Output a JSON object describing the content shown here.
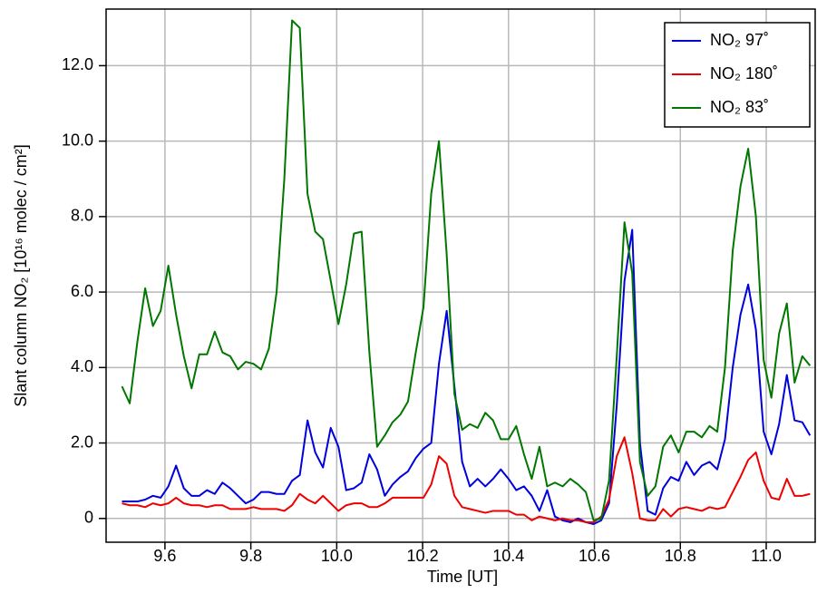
{
  "chart_data": {
    "type": "line",
    "xlabel": "Time [UT]",
    "ylabel": "Slant column NO₂ [10¹⁶ molec / cm²]",
    "x": [
      9.5,
      9.518,
      9.536,
      9.554,
      9.572,
      9.59,
      9.608,
      9.626,
      9.644,
      9.662,
      9.68,
      9.698,
      9.716,
      9.734,
      9.752,
      9.77,
      9.788,
      9.806,
      9.824,
      9.842,
      9.86,
      9.878,
      9.896,
      9.914,
      9.932,
      9.95,
      9.968,
      9.986,
      10.004,
      10.022,
      10.04,
      10.058,
      10.076,
      10.094,
      10.112,
      10.13,
      10.148,
      10.166,
      10.184,
      10.202,
      10.22,
      10.238,
      10.256,
      10.274,
      10.292,
      10.31,
      10.328,
      10.346,
      10.364,
      10.382,
      10.4,
      10.418,
      10.436,
      10.454,
      10.472,
      10.49,
      10.508,
      10.526,
      10.544,
      10.562,
      10.58,
      10.598,
      10.616,
      10.634,
      10.652,
      10.67,
      10.688,
      10.706,
      10.724,
      10.742,
      10.76,
      10.778,
      10.796,
      10.814,
      10.832,
      10.85,
      10.868,
      10.886,
      10.904,
      10.922,
      10.94,
      10.958,
      10.976,
      10.994,
      11.012,
      11.03,
      11.048,
      11.066,
      11.084,
      11.102
    ],
    "series": [
      {
        "name": "NO₂ 97˚",
        "color": "#0000dd",
        "values": [
          0.45,
          0.45,
          0.45,
          0.5,
          0.6,
          0.55,
          0.85,
          1.4,
          0.8,
          0.6,
          0.6,
          0.75,
          0.65,
          0.95,
          0.8,
          0.6,
          0.4,
          0.5,
          0.7,
          0.7,
          0.65,
          0.65,
          1.0,
          1.15,
          2.6,
          1.75,
          1.35,
          2.4,
          1.9,
          0.75,
          0.8,
          0.95,
          1.7,
          1.3,
          0.6,
          0.9,
          1.1,
          1.25,
          1.6,
          1.85,
          2.0,
          4.1,
          5.5,
          3.5,
          1.5,
          0.85,
          1.05,
          0.85,
          1.05,
          1.3,
          1.05,
          0.75,
          0.85,
          0.6,
          0.2,
          0.75,
          0.05,
          -0.05,
          -0.1,
          0.0,
          -0.1,
          -0.15,
          -0.05,
          0.4,
          3.0,
          6.3,
          7.65,
          2.0,
          0.2,
          0.1,
          0.8,
          1.1,
          1.0,
          1.5,
          1.15,
          1.4,
          1.5,
          1.3,
          2.1,
          4.0,
          5.4,
          6.2,
          5.0,
          2.3,
          1.7,
          2.5,
          3.8,
          2.6,
          2.55,
          2.2
        ]
      },
      {
        "name": "NO₂ 180˚",
        "color": "#ee0000",
        "values": [
          0.4,
          0.35,
          0.35,
          0.3,
          0.4,
          0.35,
          0.4,
          0.55,
          0.4,
          0.35,
          0.35,
          0.3,
          0.35,
          0.35,
          0.25,
          0.25,
          0.25,
          0.3,
          0.25,
          0.25,
          0.25,
          0.2,
          0.35,
          0.65,
          0.5,
          0.4,
          0.6,
          0.4,
          0.2,
          0.35,
          0.4,
          0.4,
          0.3,
          0.3,
          0.4,
          0.55,
          0.55,
          0.55,
          0.55,
          0.55,
          0.9,
          1.65,
          1.45,
          0.6,
          0.3,
          0.25,
          0.2,
          0.15,
          0.2,
          0.2,
          0.2,
          0.1,
          0.1,
          -0.05,
          0.05,
          0.0,
          -0.05,
          0.0,
          -0.05,
          -0.05,
          -0.1,
          -0.1,
          0.05,
          0.5,
          1.65,
          2.15,
          1.2,
          0.0,
          -0.05,
          -0.05,
          0.25,
          0.05,
          0.25,
          0.3,
          0.25,
          0.2,
          0.3,
          0.25,
          0.3,
          0.7,
          1.1,
          1.55,
          1.75,
          1.0,
          0.55,
          0.5,
          1.05,
          0.6,
          0.6,
          0.65
        ]
      },
      {
        "name": "NO₂ 83˚",
        "color": "#007700",
        "values": [
          3.5,
          3.05,
          4.7,
          6.1,
          5.1,
          5.5,
          6.7,
          5.4,
          4.3,
          3.45,
          4.35,
          4.35,
          4.95,
          4.4,
          4.3,
          3.95,
          4.15,
          4.1,
          3.95,
          4.5,
          6.0,
          9.0,
          13.2,
          13.0,
          8.6,
          7.6,
          7.4,
          6.3,
          5.15,
          6.2,
          7.55,
          7.6,
          4.4,
          1.9,
          2.2,
          2.55,
          2.75,
          3.1,
          4.4,
          5.6,
          8.6,
          10.0,
          7.0,
          3.3,
          2.35,
          2.5,
          2.4,
          2.8,
          2.6,
          2.1,
          2.1,
          2.45,
          1.7,
          1.05,
          1.9,
          0.85,
          0.95,
          0.85,
          1.05,
          0.9,
          0.7,
          -0.05,
          0.0,
          1.0,
          4.3,
          7.85,
          6.5,
          1.5,
          0.6,
          0.85,
          1.9,
          2.2,
          1.75,
          2.3,
          2.3,
          2.15,
          2.45,
          2.3,
          4.0,
          7.1,
          8.8,
          9.8,
          8.0,
          4.2,
          3.2,
          4.9,
          5.7,
          3.6,
          4.3,
          4.05
        ]
      }
    ],
    "xlim": [
      9.463,
      11.114
    ],
    "ylim": [
      -0.63,
      13.5
    ],
    "xticks": [
      9.6,
      9.8,
      {
        "value": 10.0,
        "label": "10.0"
      },
      10.2,
      10.4,
      10.6,
      10.8,
      {
        "value": 11.0,
        "label": "11.0"
      }
    ],
    "yticks": [
      0,
      {
        "value": 2,
        "label": "2.0"
      },
      {
        "value": 4,
        "label": "4.0"
      },
      {
        "value": 6,
        "label": "6.0"
      },
      {
        "value": 8,
        "label": "8.0"
      },
      {
        "value": 10,
        "label": "10.0"
      },
      {
        "value": 12,
        "label": "12.0"
      }
    ],
    "grid": true,
    "legend": "upper-right"
  }
}
